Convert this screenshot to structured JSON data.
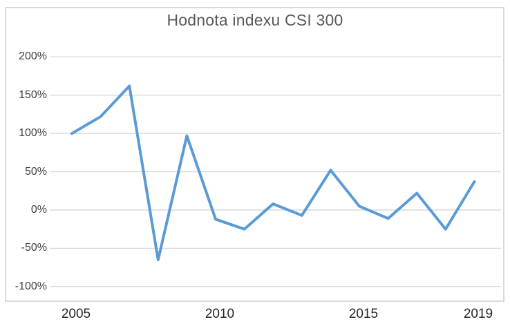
{
  "chart_data": {
    "type": "line",
    "title": "Hodnota indexu CSI 300",
    "unit": "%",
    "x": [
      2005,
      2006,
      2007,
      2008,
      2009,
      2010,
      2011,
      2012,
      2013,
      2014,
      2015,
      2016,
      2017,
      2018,
      2019
    ],
    "series": [
      {
        "name": "Hodnota indexu CSI 300",
        "values": [
          100,
          122,
          162,
          -65,
          97,
          -12,
          -25,
          8,
          -7,
          52,
          5,
          -11,
          22,
          -25,
          37
        ]
      }
    ],
    "ylim": [
      -100,
      200
    ],
    "ytick_step": 50,
    "yticks": [
      {
        "value": 200,
        "label": "200%"
      },
      {
        "value": 150,
        "label": "150%"
      },
      {
        "value": 100,
        "label": "100%"
      },
      {
        "value": 50,
        "label": "50%"
      },
      {
        "value": 0,
        "label": "0%"
      },
      {
        "value": -50,
        "label": "-50%"
      },
      {
        "value": -100,
        "label": "-100%"
      }
    ],
    "xticks": [
      {
        "value": 2005,
        "label": "2005"
      },
      {
        "value": 2010,
        "label": "2010"
      },
      {
        "value": 2015,
        "label": "2015"
      },
      {
        "value": 2019,
        "label": "2019"
      }
    ],
    "grid": "horizontal",
    "legend_position": "none",
    "colors": {
      "line": "#5B9BD5",
      "gridline": "#D9D9D9",
      "frame_border": "#D9D9D9",
      "title_text": "#595959",
      "ytick_text": "#404040",
      "xtick_text": "#262626"
    }
  }
}
